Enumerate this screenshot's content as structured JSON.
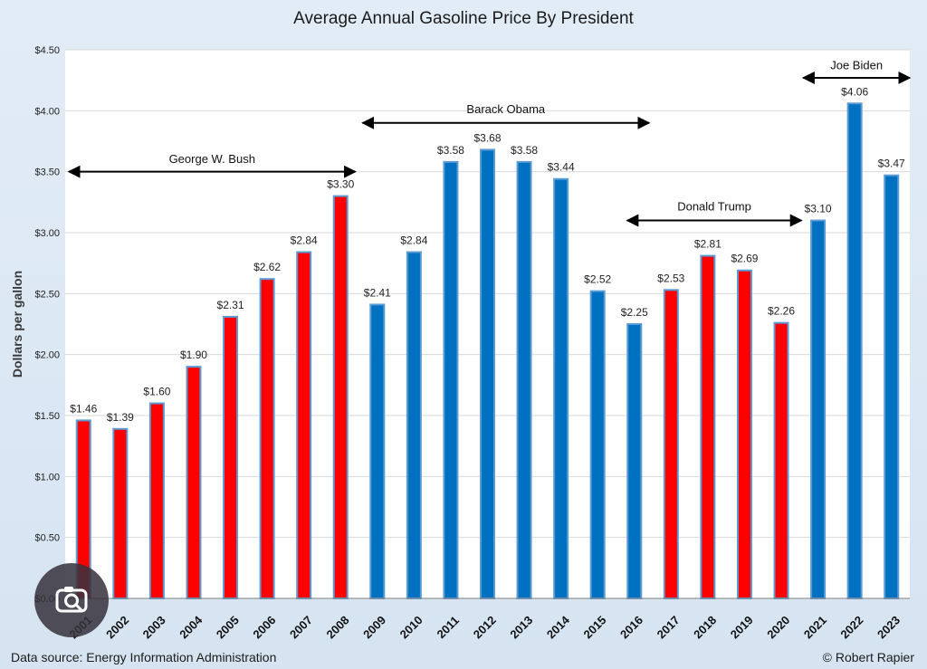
{
  "chart_data": {
    "type": "bar",
    "title": "Average Annual Gasoline Price By President",
    "xlabel": "",
    "ylabel": "Dollars per gallon",
    "ylim": [
      0,
      4.5
    ],
    "yticks": [
      "$0.00",
      "$0.50",
      "$1.00",
      "$1.50",
      "$2.00",
      "$2.50",
      "$3.00",
      "$3.50",
      "$4.00",
      "$4.50"
    ],
    "categories": [
      "2001",
      "2002",
      "2003",
      "2004",
      "2005",
      "2006",
      "2007",
      "2008",
      "2009",
      "2010",
      "2011",
      "2012",
      "2013",
      "2014",
      "2015",
      "2016",
      "2017",
      "2018",
      "2019",
      "2020",
      "2021",
      "2022",
      "2023"
    ],
    "values": [
      1.46,
      1.39,
      1.6,
      1.9,
      2.31,
      2.62,
      2.84,
      3.3,
      2.41,
      2.84,
      3.58,
      3.68,
      3.58,
      3.44,
      2.52,
      2.25,
      2.53,
      2.81,
      2.69,
      2.26,
      3.1,
      4.06,
      3.47
    ],
    "value_labels": [
      "$1.46",
      "$1.39",
      "$1.60",
      "$1.90",
      "$2.31",
      "$2.62",
      "$2.84",
      "$3.30",
      "$2.41",
      "$2.84",
      "$3.58",
      "$3.68",
      "$3.58",
      "$3.44",
      "$2.52",
      "$2.25",
      "$2.53",
      "$2.81",
      "$2.69",
      "$2.26",
      "$3.10",
      "$4.06",
      "$3.47"
    ],
    "party": [
      "R",
      "R",
      "R",
      "R",
      "R",
      "R",
      "R",
      "R",
      "D",
      "D",
      "D",
      "D",
      "D",
      "D",
      "D",
      "D",
      "R",
      "R",
      "R",
      "R",
      "D",
      "D",
      "D"
    ],
    "colors": {
      "R": "#ff0000",
      "D": "#0070c0",
      "outline": "#5b9bd5",
      "grid": "#d9d9d9",
      "plot_bg": "#ffffff"
    },
    "presidents": [
      {
        "name": "George W. Bush",
        "from": "2001",
        "to": "2008",
        "value": 3.5,
        "label_value": 3.6
      },
      {
        "name": "Barack Obama",
        "from": "2009",
        "to": "2016",
        "value": 3.9,
        "label_value": 4.01
      },
      {
        "name": "Donald Trump",
        "from": "2016",
        "to": "2020",
        "value": 3.1,
        "label_value": 3.21
      },
      {
        "name": "Joe Biden",
        "from": "2021",
        "to": "2023",
        "value": 4.27,
        "label_value": 4.37
      }
    ]
  },
  "footer": {
    "source": "Data source: Energy Information Administration",
    "credit": "© Robert Rapier"
  },
  "overlay": {
    "icon": "image-search-lens-icon"
  }
}
